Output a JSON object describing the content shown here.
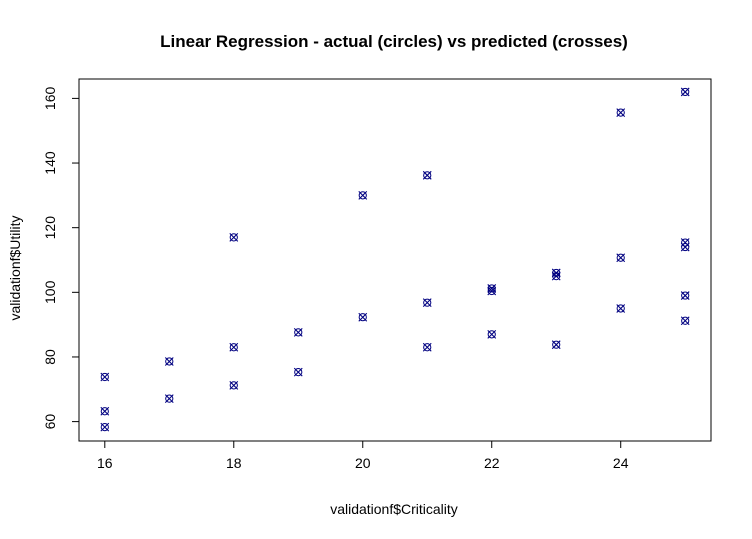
{
  "chart_data": {
    "type": "scatter",
    "title": "Linear Regression - actual (circles) vs predicted (crosses)",
    "xlabel": "validationf$Criticality",
    "ylabel": "validationf$Utility",
    "xlim": [
      15.6,
      25.4
    ],
    "ylim": [
      54,
      166
    ],
    "x_ticks": [
      16,
      18,
      20,
      22,
      24
    ],
    "y_ticks": [
      60,
      80,
      100,
      120,
      140,
      160
    ],
    "x_tick_labels": [
      "16",
      "18",
      "20",
      "22",
      "24"
    ],
    "y_tick_labels": [
      "60",
      "80",
      "100",
      "120",
      "140",
      "160"
    ],
    "grid": false,
    "marker_color": "#000080",
    "series": [
      {
        "marker": "circle",
        "x": [
          16,
          16,
          16,
          17,
          17,
          18,
          18,
          18,
          19,
          19,
          20,
          20,
          21,
          21,
          21,
          22,
          22,
          22,
          23,
          23,
          23,
          24,
          24,
          24,
          25,
          25,
          25,
          25,
          25
        ],
        "y": [
          73.8,
          63.2,
          58.3,
          78.6,
          67.1,
          117,
          83,
          71.2,
          87.6,
          75.3,
          130,
          92.3,
          136.2,
          96.8,
          83,
          101.2,
          100.4,
          87,
          106,
          105,
          83.8,
          155.6,
          110.7,
          95,
          162,
          115.4,
          114,
          99,
          91.2
        ]
      },
      {
        "marker": "cross",
        "x": [
          16,
          16,
          16,
          17,
          17,
          18,
          18,
          18,
          19,
          19,
          20,
          20,
          21,
          21,
          21,
          22,
          22,
          22,
          23,
          23,
          23,
          24,
          24,
          24,
          25,
          25,
          25,
          25,
          25
        ],
        "y": [
          73.8,
          63.2,
          58.3,
          78.6,
          67.1,
          117,
          83,
          71.2,
          87.6,
          75.3,
          130,
          92.3,
          136.2,
          96.8,
          83,
          101.2,
          100.4,
          87,
          106,
          105,
          83.8,
          155.6,
          110.7,
          95,
          162,
          115.4,
          114,
          99,
          91.2
        ]
      }
    ]
  }
}
